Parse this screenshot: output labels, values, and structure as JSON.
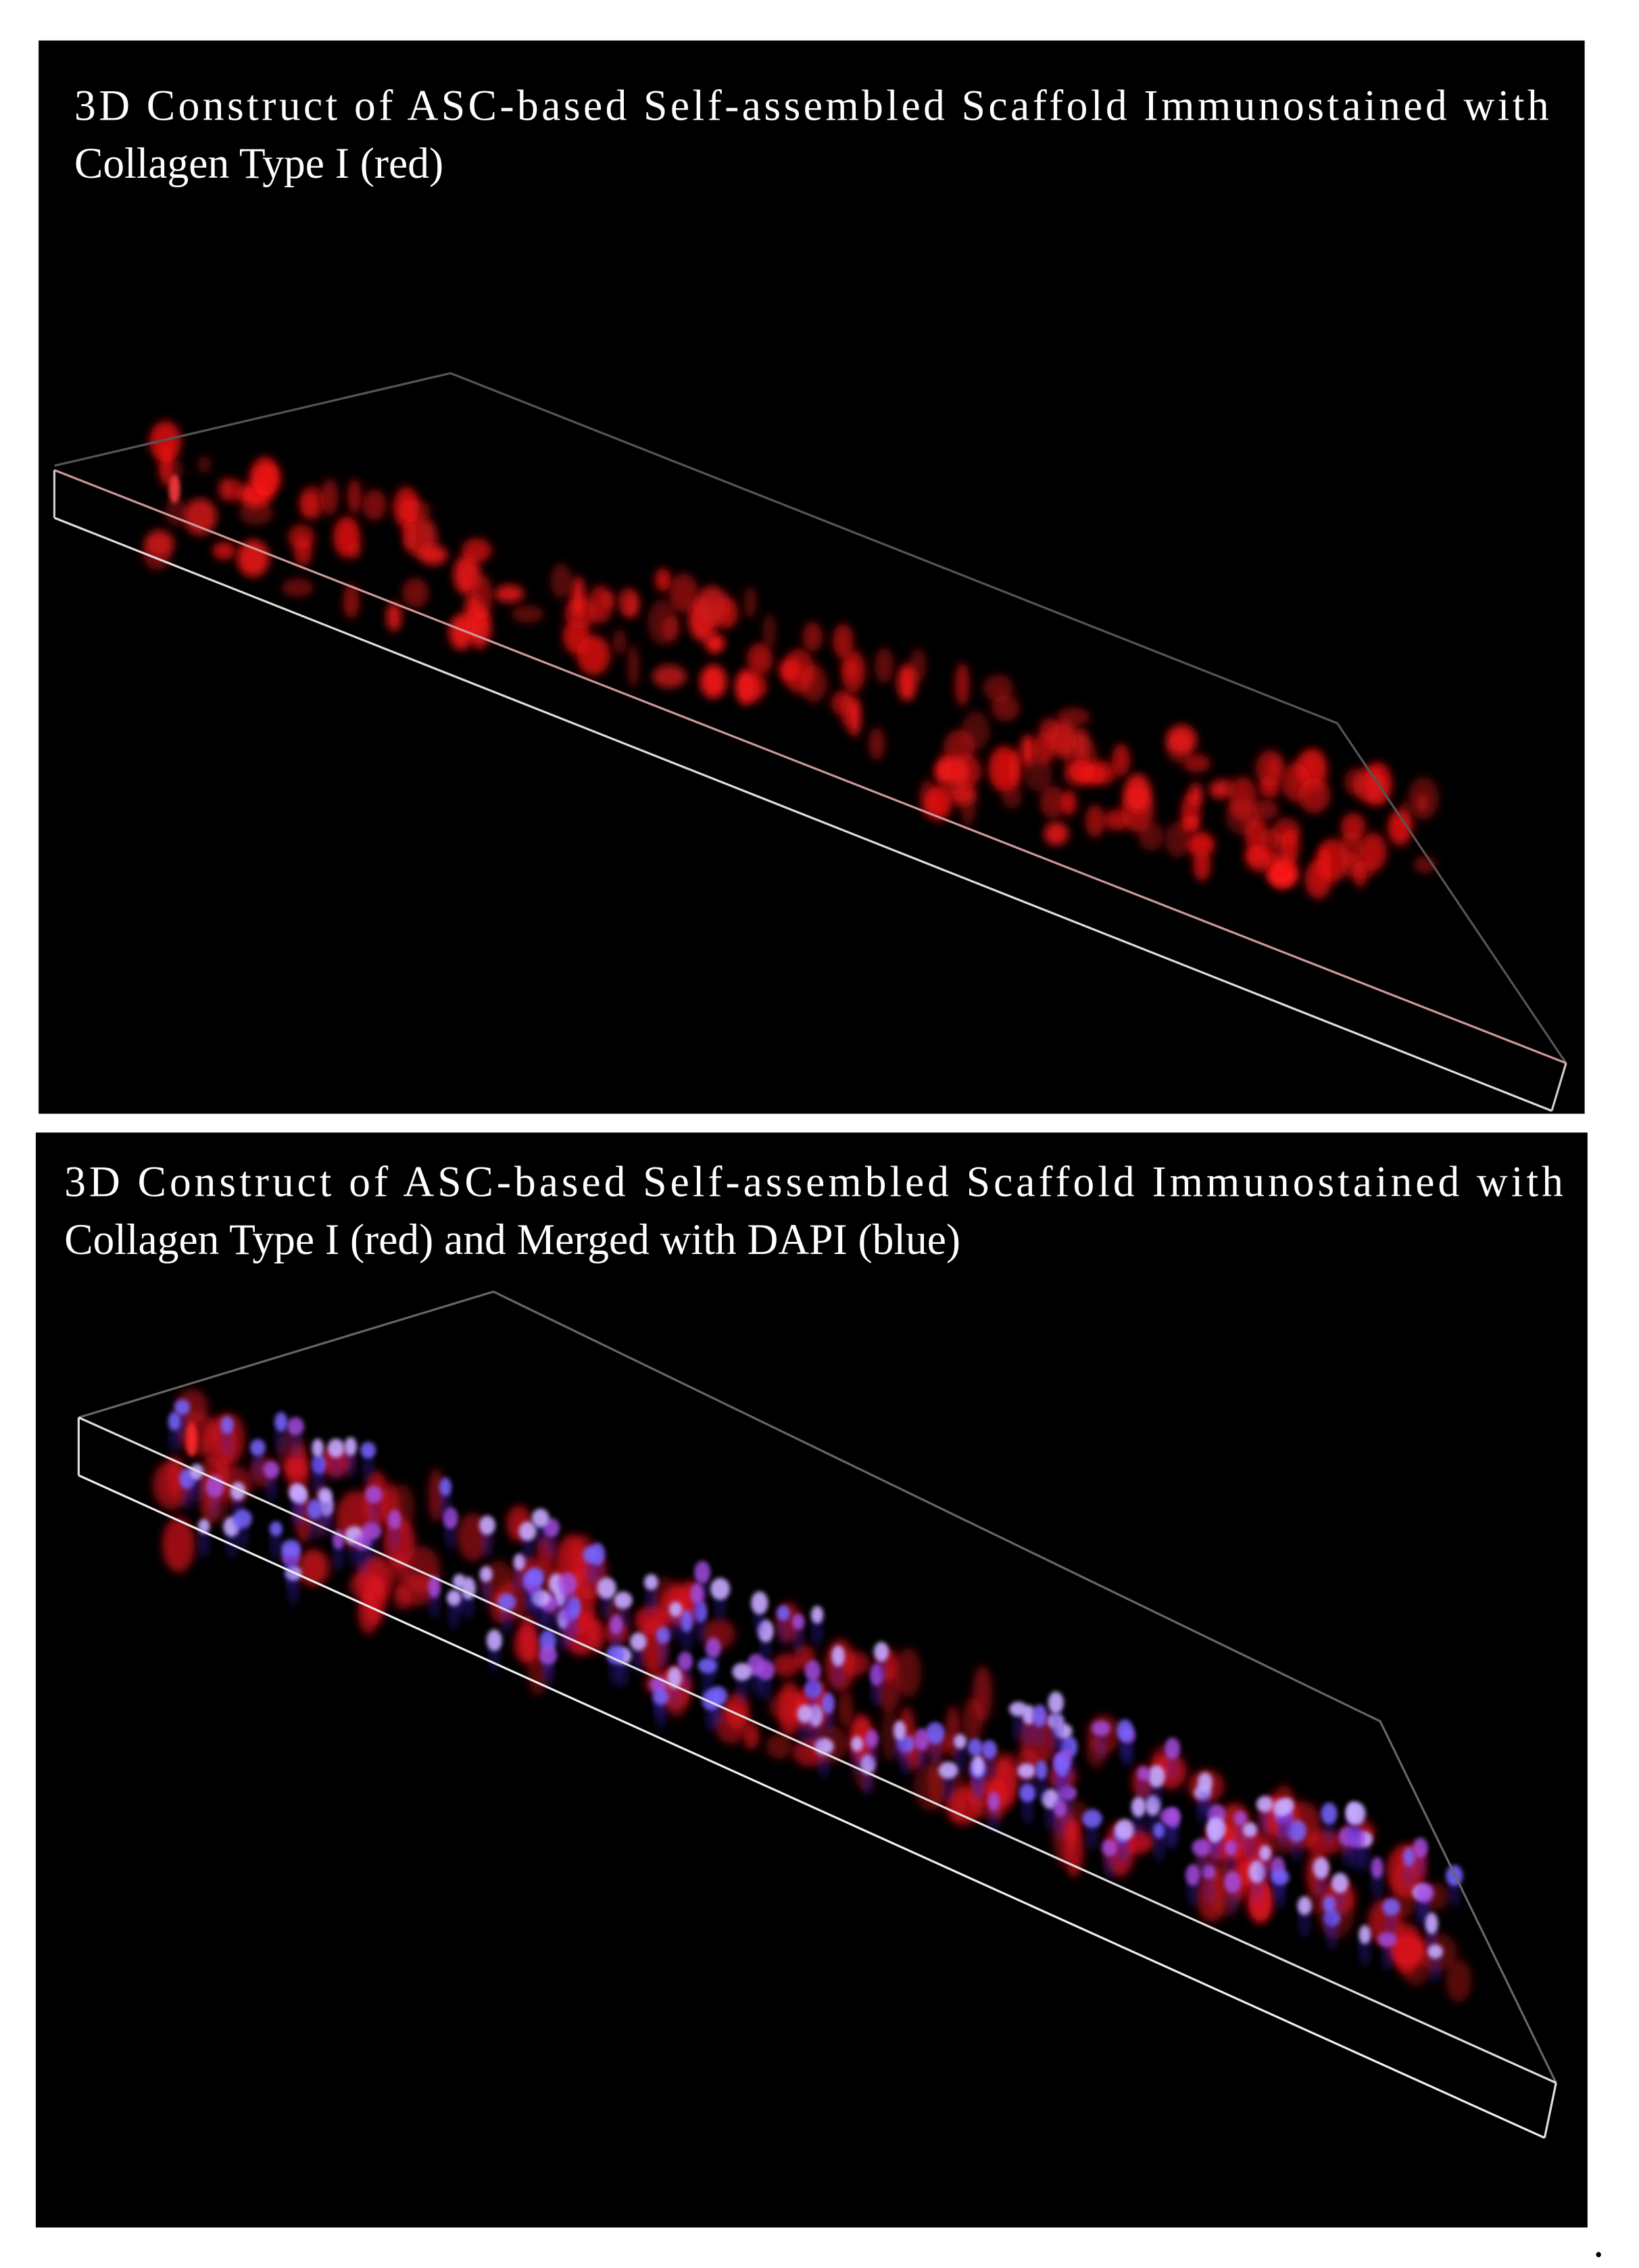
{
  "panels": [
    {
      "caption_lines": [
        "3D Construct of ASC-based Self-assembled Scaffold Immunostained with",
        "Collagen Type I (red)"
      ]
    },
    {
      "caption_lines": [
        "3D Construct of ASC-based Self-assembled Scaffold Immunostained with",
        "Collagen Type I (red)  and Merged with DAPI (blue)"
      ]
    }
  ],
  "end_mark": "."
}
